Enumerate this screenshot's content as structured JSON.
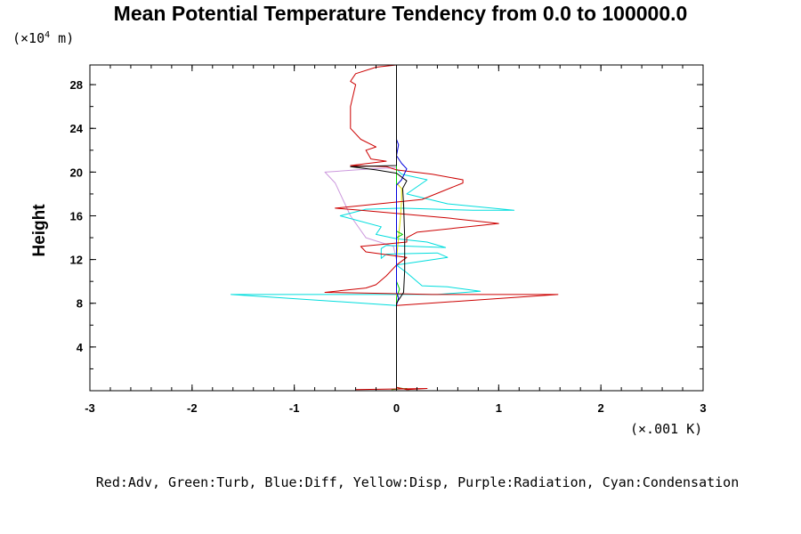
{
  "chart_data": {
    "type": "line",
    "title": "Mean Potential Temperature Tendency from 0.0 to 100000.0",
    "ylabel": "Height",
    "y_unit_prefix": "(×10",
    "y_unit_exp": "4",
    "y_unit_suffix": " m)",
    "x_unit": "(×.001 K)",
    "xlim": [
      -3,
      3
    ],
    "ylim": [
      0,
      29.8
    ],
    "x_ticks": [
      "-3",
      "-2",
      "-1",
      "0",
      "1",
      "2",
      "3"
    ],
    "y_ticks": [
      "4",
      "8",
      "12",
      "16",
      "20",
      "24",
      "28"
    ],
    "legend_text": "Red:Adv, Green:Turb, Blue:Diff, Yellow:Disp, Purple:Radiation, Cyan:Condensation",
    "colors": {
      "adv": "#cc0000",
      "turb": "#00cc00",
      "diff": "#0000dd",
      "disp": "#dddd00",
      "radiation": "#cc99dd",
      "condensation": "#00dddd",
      "total": "#000000"
    },
    "series": [
      {
        "key": "radiation",
        "points": [
          [
            0,
            0.1
          ],
          [
            0,
            12
          ],
          [
            -0.03,
            13.2
          ],
          [
            -0.3,
            14
          ],
          [
            -0.45,
            16
          ],
          [
            -0.6,
            19
          ],
          [
            -0.7,
            20
          ],
          [
            -0.25,
            20.3
          ],
          [
            0,
            20.4
          ]
        ]
      },
      {
        "key": "condensation",
        "points": [
          [
            0,
            0.1
          ],
          [
            0,
            7.8
          ],
          [
            -1.62,
            8.8
          ],
          [
            0.4,
            8.8
          ],
          [
            0.82,
            9.1
          ],
          [
            0.5,
            9.5
          ],
          [
            0.25,
            9.6
          ],
          [
            0.1,
            10.8
          ],
          [
            0,
            11.5
          ],
          [
            0.5,
            12.2
          ],
          [
            0.4,
            12.6
          ],
          [
            -0.1,
            12.5
          ],
          [
            -0.15,
            12.1
          ],
          [
            -0.15,
            13
          ],
          [
            -0.1,
            13.3
          ],
          [
            0.48,
            13.1
          ],
          [
            0.3,
            13.6
          ],
          [
            0,
            13.9
          ],
          [
            -0.2,
            14.3
          ],
          [
            -0.15,
            15
          ],
          [
            -0.55,
            16
          ],
          [
            -0.3,
            16.6
          ],
          [
            0.05,
            16.7
          ],
          [
            0.75,
            16.5
          ],
          [
            1.15,
            16.5
          ],
          [
            0.5,
            17.1
          ],
          [
            0.1,
            18
          ],
          [
            0.3,
            19.3
          ],
          [
            0.05,
            19.8
          ],
          [
            0,
            20.3
          ],
          [
            0,
            29.8
          ]
        ]
      },
      {
        "key": "disp",
        "points": [
          [
            0,
            0.1
          ],
          [
            0,
            12
          ],
          [
            0.02,
            14
          ],
          [
            0.04,
            16
          ],
          [
            0.05,
            17.5
          ],
          [
            0.05,
            18.5
          ],
          [
            0,
            19
          ],
          [
            0,
            29.8
          ]
        ]
      },
      {
        "key": "turb",
        "points": [
          [
            -0.05,
            0.1
          ],
          [
            0.1,
            0.2
          ],
          [
            0.12,
            0.1
          ],
          [
            0,
            0.3
          ],
          [
            0,
            8.5
          ],
          [
            0.03,
            9.3
          ],
          [
            0,
            10
          ],
          [
            0,
            14
          ],
          [
            0.06,
            14.3
          ],
          [
            0,
            14.6
          ],
          [
            0,
            29.8
          ]
        ]
      },
      {
        "key": "adv",
        "points": [
          [
            -0.4,
            0.1
          ],
          [
            0.3,
            0.2
          ],
          [
            0.1,
            0.1
          ],
          [
            0,
            0.3
          ],
          [
            0,
            7.8
          ],
          [
            1.58,
            8.8
          ],
          [
            0.35,
            8.8
          ],
          [
            -0.1,
            8.9
          ],
          [
            -0.7,
            9
          ],
          [
            -0.3,
            9.4
          ],
          [
            -0.2,
            9.7
          ],
          [
            -0.1,
            10.5
          ],
          [
            0,
            11.5
          ],
          [
            0.1,
            12.2
          ],
          [
            -0.3,
            12.7
          ],
          [
            -0.35,
            13.2
          ],
          [
            0.1,
            13.6
          ],
          [
            0.1,
            14
          ],
          [
            0.2,
            14.5
          ],
          [
            1,
            15.3
          ],
          [
            0.5,
            15.8
          ],
          [
            -0.35,
            16.5
          ],
          [
            -0.6,
            16.7
          ],
          [
            0.25,
            17.5
          ],
          [
            0.65,
            19
          ],
          [
            0.65,
            19.3
          ],
          [
            0.35,
            19.8
          ],
          [
            0,
            20.2
          ],
          [
            -0.1,
            20.5
          ],
          [
            -0.45,
            20.6
          ],
          [
            -0.1,
            21
          ],
          [
            -0.25,
            21.2
          ],
          [
            -0.3,
            22
          ],
          [
            -0.2,
            22.3
          ],
          [
            -0.35,
            23
          ],
          [
            -0.45,
            24
          ],
          [
            -0.45,
            26
          ],
          [
            -0.4,
            28
          ],
          [
            -0.45,
            28.3
          ],
          [
            -0.4,
            29
          ],
          [
            -0.2,
            29.6
          ],
          [
            0,
            29.8
          ]
        ]
      },
      {
        "key": "diff",
        "points": [
          [
            0,
            0.1
          ],
          [
            0,
            7.8
          ],
          [
            0.02,
            8.5
          ],
          [
            0,
            9
          ],
          [
            0,
            12
          ],
          [
            0,
            18.8
          ],
          [
            0.05,
            19.3
          ],
          [
            0.1,
            20.3
          ],
          [
            0.05,
            20.8
          ],
          [
            0,
            21.5
          ],
          [
            0.02,
            22.5
          ],
          [
            0,
            23
          ],
          [
            0,
            29.8
          ]
        ]
      },
      {
        "key": "total",
        "points": [
          [
            0,
            0.1
          ],
          [
            0,
            8
          ],
          [
            0.07,
            9
          ],
          [
            0.08,
            11
          ],
          [
            0.08,
            14
          ],
          [
            0.07,
            17
          ],
          [
            0.06,
            18.5
          ],
          [
            0.1,
            19.2
          ],
          [
            0,
            19.9
          ],
          [
            -0.2,
            20.2
          ],
          [
            -0.45,
            20.5
          ],
          [
            0,
            20.6
          ],
          [
            0,
            29.8
          ]
        ]
      }
    ]
  }
}
